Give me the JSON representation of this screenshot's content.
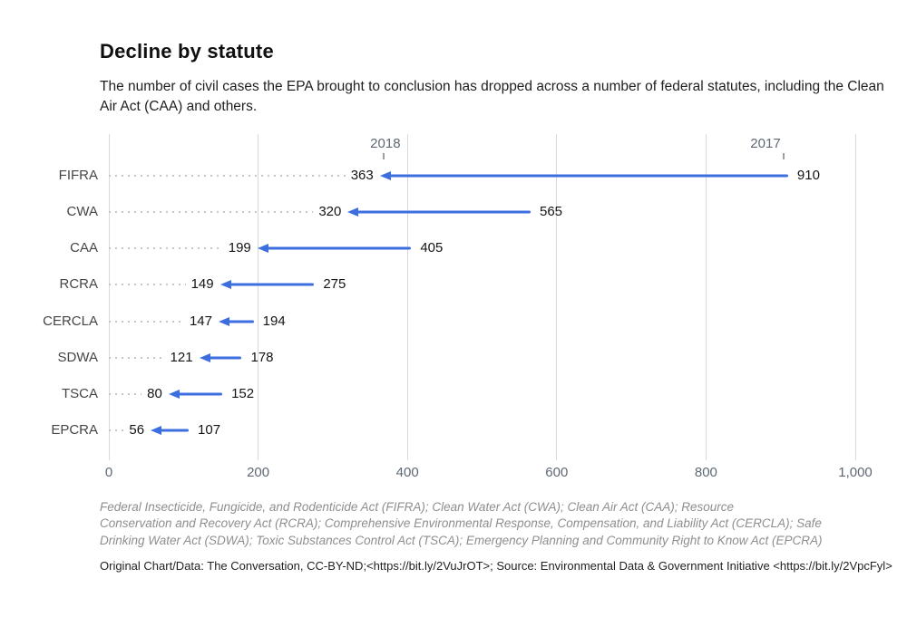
{
  "header": {
    "title": "Decline by statute",
    "subtitle": "The number of civil cases the EPA brought to conclusion has dropped across a number of federal statutes, including the Clean Air Act (CAA) and others."
  },
  "chart_data": {
    "type": "arrow-dumbbell",
    "title": "Decline by statute",
    "categories": [
      "FIFRA",
      "CWA",
      "CAA",
      "RCRA",
      "CERCLA",
      "SDWA",
      "TSCA",
      "EPCRA"
    ],
    "series": [
      {
        "name": "2017",
        "values": [
          910,
          565,
          405,
          275,
          194,
          178,
          152,
          107
        ]
      },
      {
        "name": "2018",
        "values": [
          363,
          320,
          199,
          149,
          147,
          121,
          80,
          56
        ]
      }
    ],
    "xlabel": "",
    "ylabel": "",
    "xlim": [
      0,
      1000
    ],
    "xticks": [
      {
        "value": 0,
        "label": "0"
      },
      {
        "value": 200,
        "label": "200"
      },
      {
        "value": 400,
        "label": "400"
      },
      {
        "value": 600,
        "label": "600"
      },
      {
        "value": 800,
        "label": "800"
      },
      {
        "value": 1000,
        "label": "1,000"
      }
    ],
    "annotations": [
      {
        "label": "2018",
        "anchor_value": 368,
        "label_dx": 2
      },
      {
        "label": "2017",
        "anchor_value": 904,
        "label_dx": -20
      }
    ],
    "grid": "vertical",
    "legend_position": "none",
    "arrow_color": "#3c6ee0",
    "value_label_color": "#141414",
    "axis_label_color": "#5d6874",
    "direction": "arrows point from 2017 value down to 2018 value (decline)"
  },
  "footer": {
    "footnote_lines": [
      "Federal Insecticide, Fungicide, and Rodenticide Act (FIFRA); Clean Water Act (CWA); Clean Air Act (CAA); Resource",
      "Conservation and Recovery Act (RCRA); Comprehensive Environmental Response, Compensation, and Liability Act (CERCLA); Safe",
      "Drinking Water Act (SDWA); Toxic Substances Control Act (TSCA); Emergency Planning and Community Right to Know Act (EPCRA)",
      "Original Chart/Data: The Conversation, CC-BY-ND;<https://bit.ly/2VuJrOT>; Source: Environmental Data & Government Initiative <https://bit.ly/2VpcFyl>"
    ]
  }
}
